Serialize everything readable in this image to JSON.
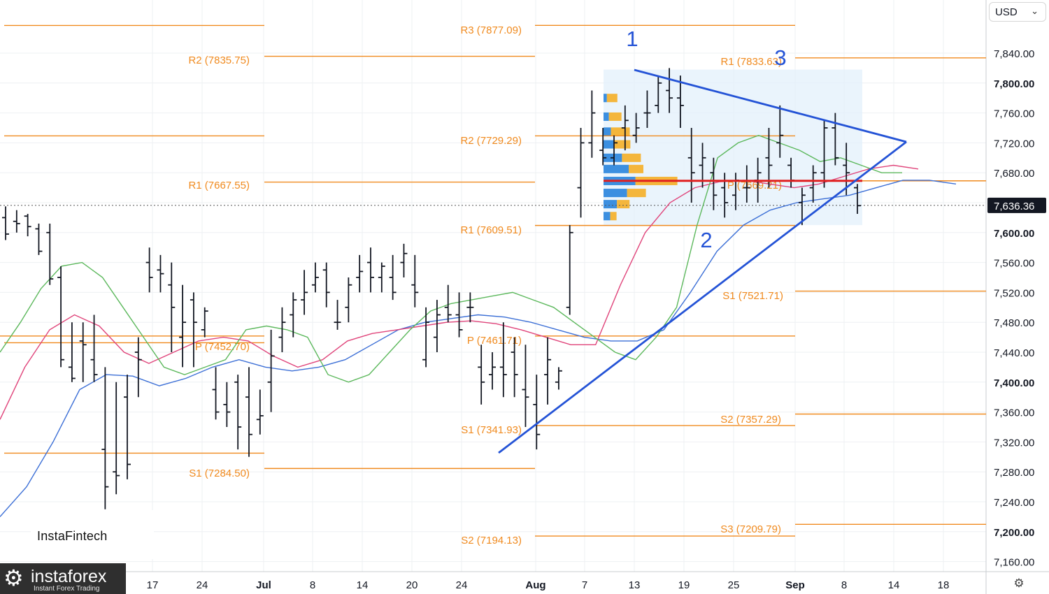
{
  "chart_data": {
    "type": "ohlc",
    "y_range": [
      7140,
      7900
    ],
    "y_ticks": [
      "7,160.00",
      "7,200.00",
      "7,240.00",
      "7,280.00",
      "7,320.00",
      "7,360.00",
      "7,400.00",
      "7,440.00",
      "7,480.00",
      "7,520.00",
      "7,560.00",
      "7,600.00",
      "7,640.00",
      "7,680.00",
      "7,720.00",
      "7,760.00",
      "7,800.00",
      "7,840.00"
    ],
    "y_ticks_bold": [
      "7,200.00",
      "7,400.00",
      "7,600.00",
      "7,800.00"
    ],
    "x_ticks": [
      "17",
      "24",
      "Jul",
      "8",
      "14",
      "20",
      "24",
      "Aug",
      "7",
      "13",
      "19",
      "25",
      "Sep",
      "8",
      "14",
      "18"
    ],
    "x_ticks_bold": [
      "Jul",
      "Aug",
      "Sep"
    ],
    "last_price": 7636.36,
    "last_price_label": "7,636.36",
    "pivot_levels": [
      {
        "label": "R2 (7835.75)",
        "value": 7835.75
      },
      {
        "label": "R1 (7667.55)",
        "value": 7667.55
      },
      {
        "label": "P (7452.70)",
        "value": 7452.7
      },
      {
        "label": "S1 (7284.50)",
        "value": 7284.5
      },
      {
        "label": "R3 (7877.09)",
        "value": 7877.09
      },
      {
        "label": "R2 (7729.29)",
        "value": 7729.29
      },
      {
        "label": "R1 (7609.51)",
        "value": 7609.51
      },
      {
        "label": "P (7461.71)",
        "value": 7461.71
      },
      {
        "label": "S1 (7341.93)",
        "value": 7341.93
      },
      {
        "label": "S2 (7194.13)",
        "value": 7194.13
      },
      {
        "label": "R1 (7833.63)",
        "value": 7833.63
      },
      {
        "label": "P (7669.21)",
        "value": 7669.21
      },
      {
        "label": "S1 (7521.71)",
        "value": 7521.71
      },
      {
        "label": "S2 (7357.29)",
        "value": 7357.29
      },
      {
        "label": "S3 (7209.79)",
        "value": 7209.79
      }
    ],
    "extra_levels": [
      7729.29,
      7461.71,
      7305,
      7669.21
    ],
    "point_labels": [
      "1",
      "2",
      "3"
    ],
    "ohlc": [
      [
        7620,
        7635,
        7590,
        7598
      ],
      [
        7615,
        7630,
        7600,
        7612
      ],
      [
        7622,
        7625,
        7595,
        7608
      ],
      [
        7605,
        7612,
        7570,
        7575
      ],
      [
        7600,
        7612,
        7530,
        7538
      ],
      [
        7540,
        7555,
        7420,
        7430
      ],
      [
        7420,
        7480,
        7400,
        7405
      ],
      [
        7455,
        7480,
        7400,
        7450
      ],
      [
        7430,
        7490,
        7400,
        7410
      ],
      [
        7310,
        7420,
        7230,
        7260
      ],
      [
        7280,
        7400,
        7250,
        7275
      ],
      [
        7380,
        7410,
        7270,
        7290
      ],
      [
        7440,
        7460,
        7380,
        7430
      ],
      [
        7560,
        7580,
        7520,
        7540
      ],
      [
        7550,
        7570,
        7520,
        7545
      ],
      [
        7530,
        7560,
        7440,
        7500
      ],
      [
        7460,
        7530,
        7420,
        7480
      ],
      [
        7510,
        7520,
        7420,
        7480
      ],
      [
        7470,
        7500,
        7460,
        7495
      ],
      [
        7390,
        7420,
        7350,
        7360
      ],
      [
        7370,
        7400,
        7340,
        7360
      ],
      [
        7400,
        7410,
        7310,
        7340
      ],
      [
        7380,
        7420,
        7300,
        7330
      ],
      [
        7350,
        7390,
        7330,
        7355
      ],
      [
        7400,
        7470,
        7360,
        7435
      ],
      [
        7460,
        7500,
        7440,
        7480
      ],
      [
        7490,
        7520,
        7460,
        7510
      ],
      [
        7510,
        7550,
        7490,
        7520
      ],
      [
        7530,
        7560,
        7520,
        7540
      ],
      [
        7550,
        7560,
        7500,
        7520
      ],
      [
        7480,
        7510,
        7470,
        7480
      ],
      [
        7500,
        7540,
        7480,
        7530
      ],
      [
        7540,
        7570,
        7520,
        7548
      ],
      [
        7560,
        7580,
        7520,
        7540
      ],
      [
        7540,
        7560,
        7520,
        7555
      ],
      [
        7540,
        7570,
        7510,
        7520
      ],
      [
        7560,
        7585,
        7540,
        7572
      ],
      [
        7530,
        7570,
        7500,
        7520
      ],
      [
        7430,
        7500,
        7420,
        7480
      ],
      [
        7460,
        7510,
        7440,
        7490
      ],
      [
        7500,
        7530,
        7480,
        7490
      ],
      [
        7490,
        7520,
        7460,
        7470
      ],
      [
        7500,
        7520,
        7480,
        7500
      ],
      [
        7420,
        7450,
        7370,
        7400
      ],
      [
        7410,
        7440,
        7390,
        7420
      ],
      [
        7420,
        7480,
        7380,
        7410
      ],
      [
        7440,
        7460,
        7380,
        7410
      ],
      [
        7390,
        7450,
        7340,
        7380
      ],
      [
        7370,
        7410,
        7310,
        7330
      ],
      [
        7410,
        7460,
        7370,
        7430
      ],
      [
        7400,
        7420,
        7390,
        7415
      ],
      [
        7500,
        7610,
        7490,
        7600
      ],
      [
        7660,
        7740,
        7620,
        7720
      ],
      [
        7720,
        7790,
        7700,
        7760
      ],
      [
        7710,
        7740,
        7690,
        7700
      ],
      [
        7700,
        7730,
        7690,
        7720
      ],
      [
        7740,
        7770,
        7710,
        7750
      ],
      [
        7730,
        7760,
        7720,
        7740
      ],
      [
        7760,
        7790,
        7740,
        7760
      ],
      [
        7770,
        7810,
        7760,
        7800
      ],
      [
        7790,
        7820,
        7760,
        7780
      ],
      [
        7780,
        7810,
        7740,
        7770
      ],
      [
        7700,
        7740,
        7640,
        7680
      ],
      [
        7690,
        7720,
        7660,
        7700
      ],
      [
        7680,
        7700,
        7630,
        7650
      ],
      [
        7660,
        7680,
        7620,
        7640
      ],
      [
        7650,
        7680,
        7630,
        7670
      ],
      [
        7660,
        7690,
        7640,
        7660
      ],
      [
        7670,
        7700,
        7640,
        7680
      ],
      [
        7700,
        7740,
        7660,
        7690
      ],
      [
        7720,
        7770,
        7700,
        7730
      ],
      [
        7690,
        7700,
        7660,
        7670
      ],
      [
        7640,
        7660,
        7610,
        7650
      ],
      [
        7660,
        7690,
        7640,
        7680
      ],
      [
        7680,
        7750,
        7660,
        7740
      ],
      [
        7740,
        7760,
        7690,
        7700
      ],
      [
        7690,
        7720,
        7650,
        7680
      ],
      [
        7660,
        7665,
        7625,
        7636
      ]
    ],
    "ema_fast": [
      7440,
      7480,
      7525,
      7555,
      7560,
      7540,
      7500,
      7460,
      7420,
      7410,
      7420,
      7430,
      7470,
      7475,
      7470,
      7460,
      7410,
      7400,
      7410,
      7440,
      7470,
      7495,
      7505,
      7510,
      7515,
      7520,
      7510,
      7500,
      7480,
      7460,
      7440,
      7430,
      7460,
      7500,
      7610,
      7700,
      7720,
      7730,
      7720,
      7710,
      7695,
      7700,
      7690,
      7680,
      7680
    ],
    "ema_mid": [
      7350,
      7420,
      7470,
      7490,
      7475,
      7440,
      7425,
      7440,
      7455,
      7460,
      7455,
      7435,
      7420,
      7430,
      7455,
      7465,
      7470,
      7475,
      7480,
      7482,
      7478,
      7470,
      7460,
      7450,
      7450,
      7530,
      7600,
      7640,
      7660,
      7668,
      7670,
      7665,
      7660,
      7665,
      7675,
      7685,
      7690,
      7685
    ],
    "ema_slow": [
      7220,
      7260,
      7320,
      7390,
      7410,
      7408,
      7395,
      7405,
      7420,
      7430,
      7420,
      7415,
      7420,
      7430,
      7450,
      7470,
      7480,
      7485,
      7490,
      7487,
      7480,
      7470,
      7460,
      7455,
      7455,
      7470,
      7520,
      7575,
      7610,
      7630,
      7640,
      7645,
      7650,
      7660,
      7670,
      7670,
      7665
    ],
    "volume_profile": [
      {
        "price": 7780,
        "blue": 0.1,
        "orange": 0.25
      },
      {
        "price": 7755,
        "blue": 0.16,
        "orange": 0.3
      },
      {
        "price": 7735,
        "blue": 0.22,
        "orange": 0.45
      },
      {
        "price": 7718,
        "blue": 0.3,
        "orange": 0.4
      },
      {
        "price": 7700,
        "blue": 0.55,
        "orange": 0.45
      },
      {
        "price": 7685,
        "blue": 0.75,
        "orange": 0.35
      },
      {
        "price": 7669,
        "blue": 0.95,
        "orange": 1.0
      },
      {
        "price": 7653,
        "blue": 0.7,
        "orange": 0.45
      },
      {
        "price": 7638,
        "blue": 0.4,
        "orange": 0.3
      },
      {
        "price": 7622,
        "blue": 0.2,
        "orange": 0.15
      }
    ]
  },
  "ui": {
    "currency": "USD",
    "brand_inline": "InstaFintech",
    "logo_name": "instaforex",
    "logo_tagline": "Instant Forex Trading"
  },
  "colors": {
    "pivot": "#f08a1e",
    "bar": "#131722",
    "ema_fast": "#5cb85c",
    "ema_mid": "#e0457b",
    "ema_slow": "#3c6fd6",
    "triangle": "#2453d6",
    "poc": "#e02020",
    "vp_blue": "#3c8fe0",
    "vp_orange": "#f4b63c",
    "vp_bg": "#e3f0fb",
    "grid": "#eef0f3"
  }
}
